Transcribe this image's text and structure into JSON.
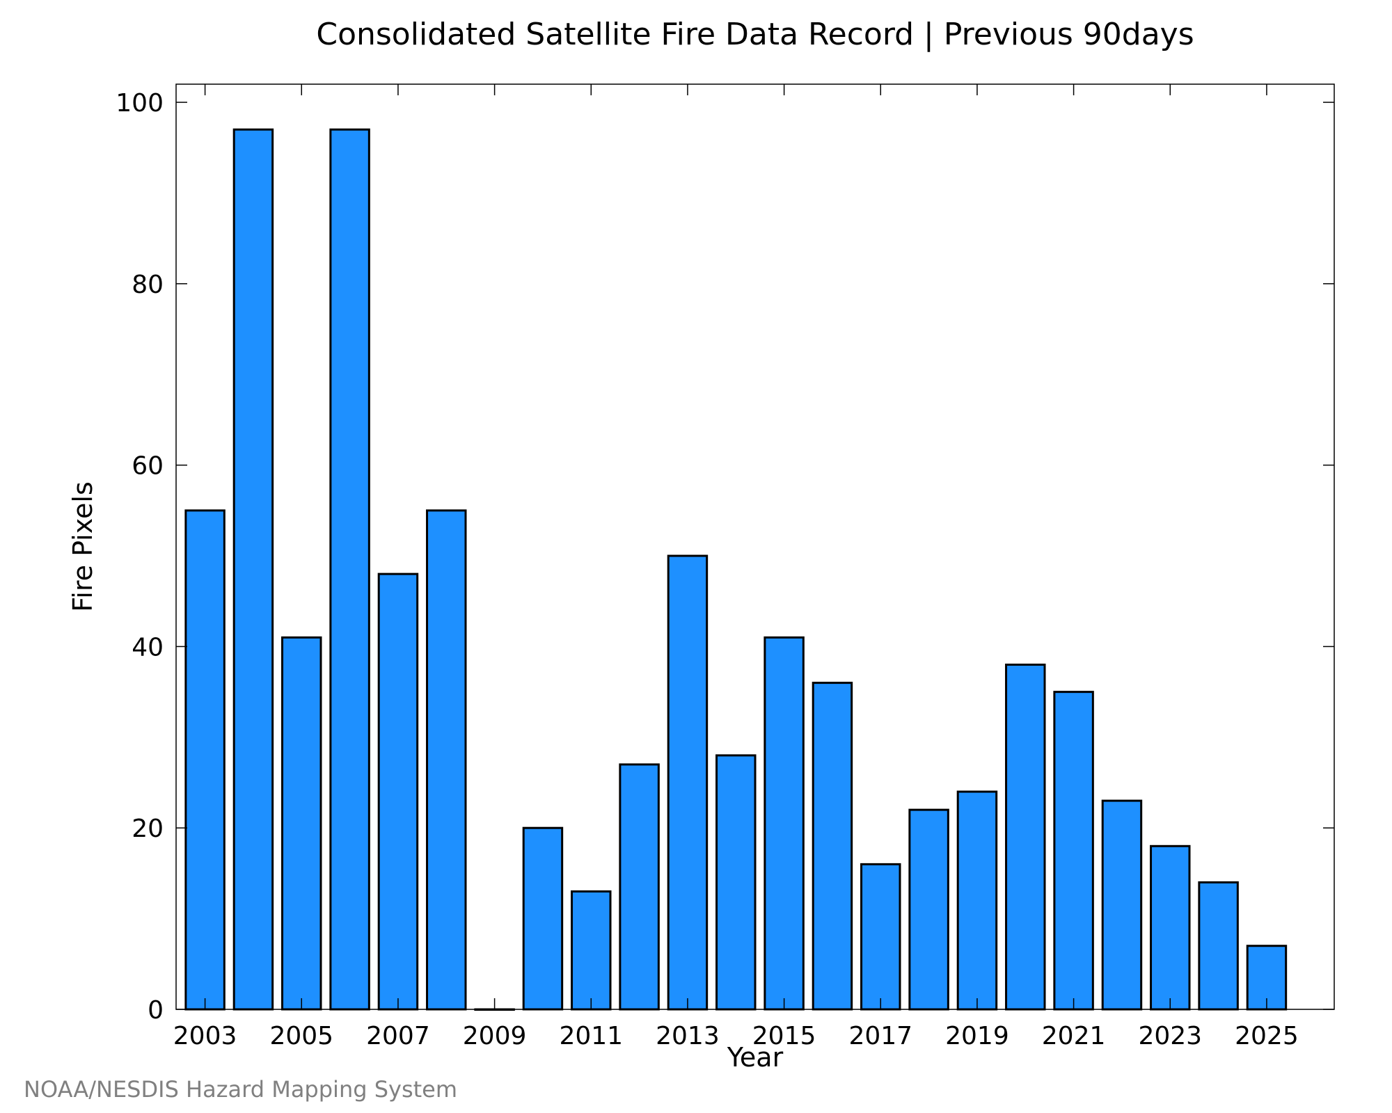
{
  "chart_data": {
    "type": "bar",
    "title": "Consolidated Satellite Fire Data Record | Previous 90days",
    "xlabel": "Year",
    "ylabel": "Fire Pixels",
    "categories": [
      "2003",
      "2004",
      "2005",
      "2006",
      "2007",
      "2008",
      "2009",
      "2010",
      "2011",
      "2012",
      "2013",
      "2014",
      "2015",
      "2016",
      "2017",
      "2018",
      "2019",
      "2020",
      "2021",
      "2022",
      "2023",
      "2024",
      "2025"
    ],
    "values": [
      55,
      97,
      41,
      97,
      48,
      55,
      0,
      20,
      13,
      27,
      50,
      28,
      41,
      36,
      16,
      22,
      24,
      38,
      35,
      23,
      18,
      14,
      7
    ],
    "x_tick_labels": [
      "2003",
      "2005",
      "2007",
      "2009",
      "2011",
      "2013",
      "2015",
      "2017",
      "2019",
      "2021",
      "2023",
      "2025"
    ],
    "y_tick_labels": [
      "0",
      "20",
      "40",
      "60",
      "80",
      "100"
    ],
    "ylim": [
      0,
      102
    ],
    "bar_color": "#1e90ff",
    "grid": false
  },
  "credit": "NOAA/NESDIS Hazard Mapping System"
}
